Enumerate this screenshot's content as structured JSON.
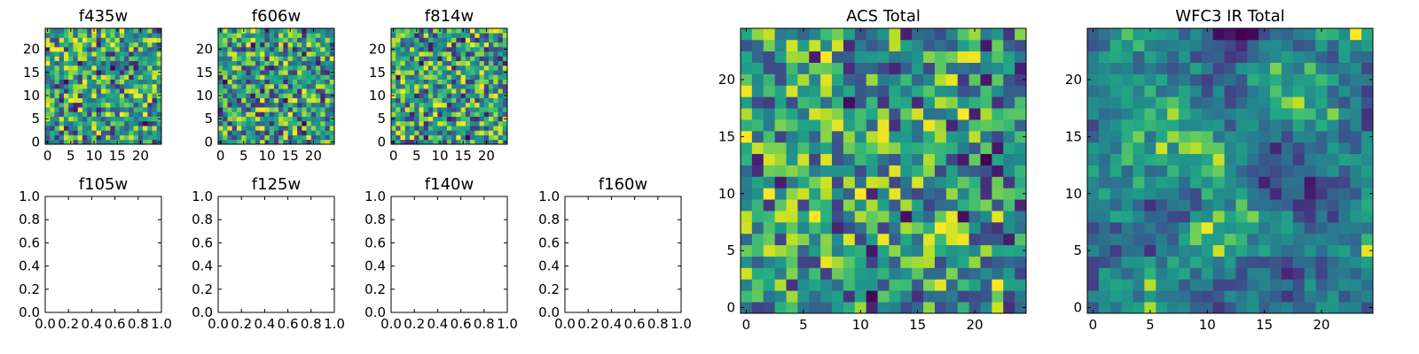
{
  "chart_data": [
    {
      "type": "heatmap",
      "title": "f435w",
      "grid_size": 25,
      "xticks": [
        "0",
        "5",
        "10",
        "15",
        "20"
      ],
      "yticks": [
        "0",
        "5",
        "10",
        "15",
        "20"
      ],
      "colormap": "viridis",
      "seed": 11
    },
    {
      "type": "heatmap",
      "title": "f606w",
      "grid_size": 25,
      "xticks": [
        "0",
        "5",
        "10",
        "15",
        "20"
      ],
      "yticks": [
        "0",
        "5",
        "10",
        "15",
        "20"
      ],
      "colormap": "viridis",
      "seed": 23
    },
    {
      "type": "heatmap",
      "title": "f814w",
      "grid_size": 25,
      "xticks": [
        "0",
        "5",
        "10",
        "15",
        "20"
      ],
      "yticks": [
        "0",
        "5",
        "10",
        "15",
        "20"
      ],
      "colormap": "viridis",
      "seed": 37
    },
    {
      "type": "empty",
      "title": "f105w",
      "xticks": [
        "0.0",
        "0.2",
        "0.4",
        "0.6",
        "0.8",
        "1.0"
      ],
      "yticks": [
        "0.0",
        "0.2",
        "0.4",
        "0.6",
        "0.8",
        "1.0"
      ]
    },
    {
      "type": "empty",
      "title": "f125w",
      "xticks": [
        "0.0",
        "0.2",
        "0.4",
        "0.6",
        "0.8",
        "1.0"
      ],
      "yticks": [
        "0.0",
        "0.2",
        "0.4",
        "0.6",
        "0.8",
        "1.0"
      ]
    },
    {
      "type": "empty",
      "title": "f140w",
      "xticks": [
        "0.0",
        "0.2",
        "0.4",
        "0.6",
        "0.8",
        "1.0"
      ],
      "yticks": [
        "0.0",
        "0.2",
        "0.4",
        "0.6",
        "0.8",
        "1.0"
      ]
    },
    {
      "type": "empty",
      "title": "f160w",
      "xticks": [
        "0.0",
        "0.2",
        "0.4",
        "0.6",
        "0.8",
        "1.0"
      ],
      "yticks": [
        "0.0",
        "0.2",
        "0.4",
        "0.6",
        "0.8",
        "1.0"
      ]
    },
    {
      "type": "heatmap",
      "title": "ACS Total",
      "grid_size": 25,
      "xticks": [
        "0",
        "5",
        "10",
        "15",
        "20"
      ],
      "yticks": [
        "0",
        "5",
        "10",
        "15",
        "20"
      ],
      "colormap": "viridis",
      "seed": 53
    },
    {
      "type": "heatmap",
      "title": "WFC3 IR Total",
      "grid_size": 25,
      "xticks": [
        "0",
        "5",
        "10",
        "15",
        "20"
      ],
      "yticks": [
        "0",
        "5",
        "10",
        "15",
        "20"
      ],
      "colormap": "viridis",
      "seed": 71,
      "smooth": true
    }
  ]
}
